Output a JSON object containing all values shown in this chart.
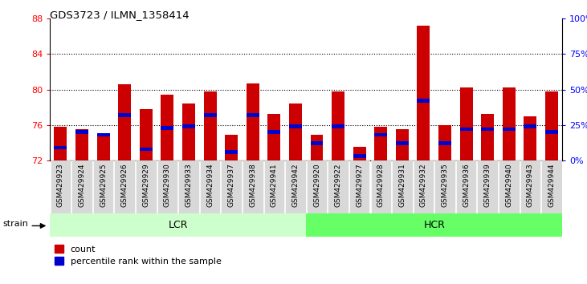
{
  "title": "GDS3723 / ILMN_1358414",
  "samples": [
    "GSM429923",
    "GSM429924",
    "GSM429925",
    "GSM429926",
    "GSM429929",
    "GSM429930",
    "GSM429933",
    "GSM429934",
    "GSM429937",
    "GSM429938",
    "GSM429941",
    "GSM429942",
    "GSM429920",
    "GSM429922",
    "GSM429927",
    "GSM429928",
    "GSM429931",
    "GSM429932",
    "GSM429935",
    "GSM429936",
    "GSM429939",
    "GSM429940",
    "GSM429943",
    "GSM429944"
  ],
  "count_values": [
    75.8,
    75.5,
    74.9,
    80.6,
    77.8,
    79.4,
    78.4,
    79.8,
    74.9,
    80.7,
    77.2,
    78.4,
    74.9,
    79.8,
    73.5,
    75.8,
    75.5,
    87.2,
    76.0,
    80.2,
    77.2,
    80.2,
    77.0,
    79.8
  ],
  "percentile_values": [
    9,
    20,
    18,
    32,
    8,
    23,
    24,
    32,
    6,
    32,
    20,
    24,
    12,
    24,
    3,
    18,
    12,
    42,
    12,
    22,
    22,
    22,
    24,
    20
  ],
  "bar_color_red": "#cc0000",
  "bar_color_blue": "#0000cc",
  "ylim_left": [
    72,
    88
  ],
  "ylim_right": [
    0,
    100
  ],
  "yticks_left": [
    72,
    76,
    80,
    84,
    88
  ],
  "yticks_right": [
    0,
    25,
    50,
    75,
    100
  ],
  "ytick_labels_right": [
    "0%",
    "25%",
    "50%",
    "75%",
    "100%"
  ],
  "grid_ticks": [
    76,
    80,
    84
  ],
  "bar_width": 0.6,
  "baseline": 72,
  "n_lcr": 12,
  "n_hcr": 12,
  "lcr_color": "#ccffcc",
  "hcr_color": "#66ff66",
  "xtick_bg": "#d8d8d8"
}
